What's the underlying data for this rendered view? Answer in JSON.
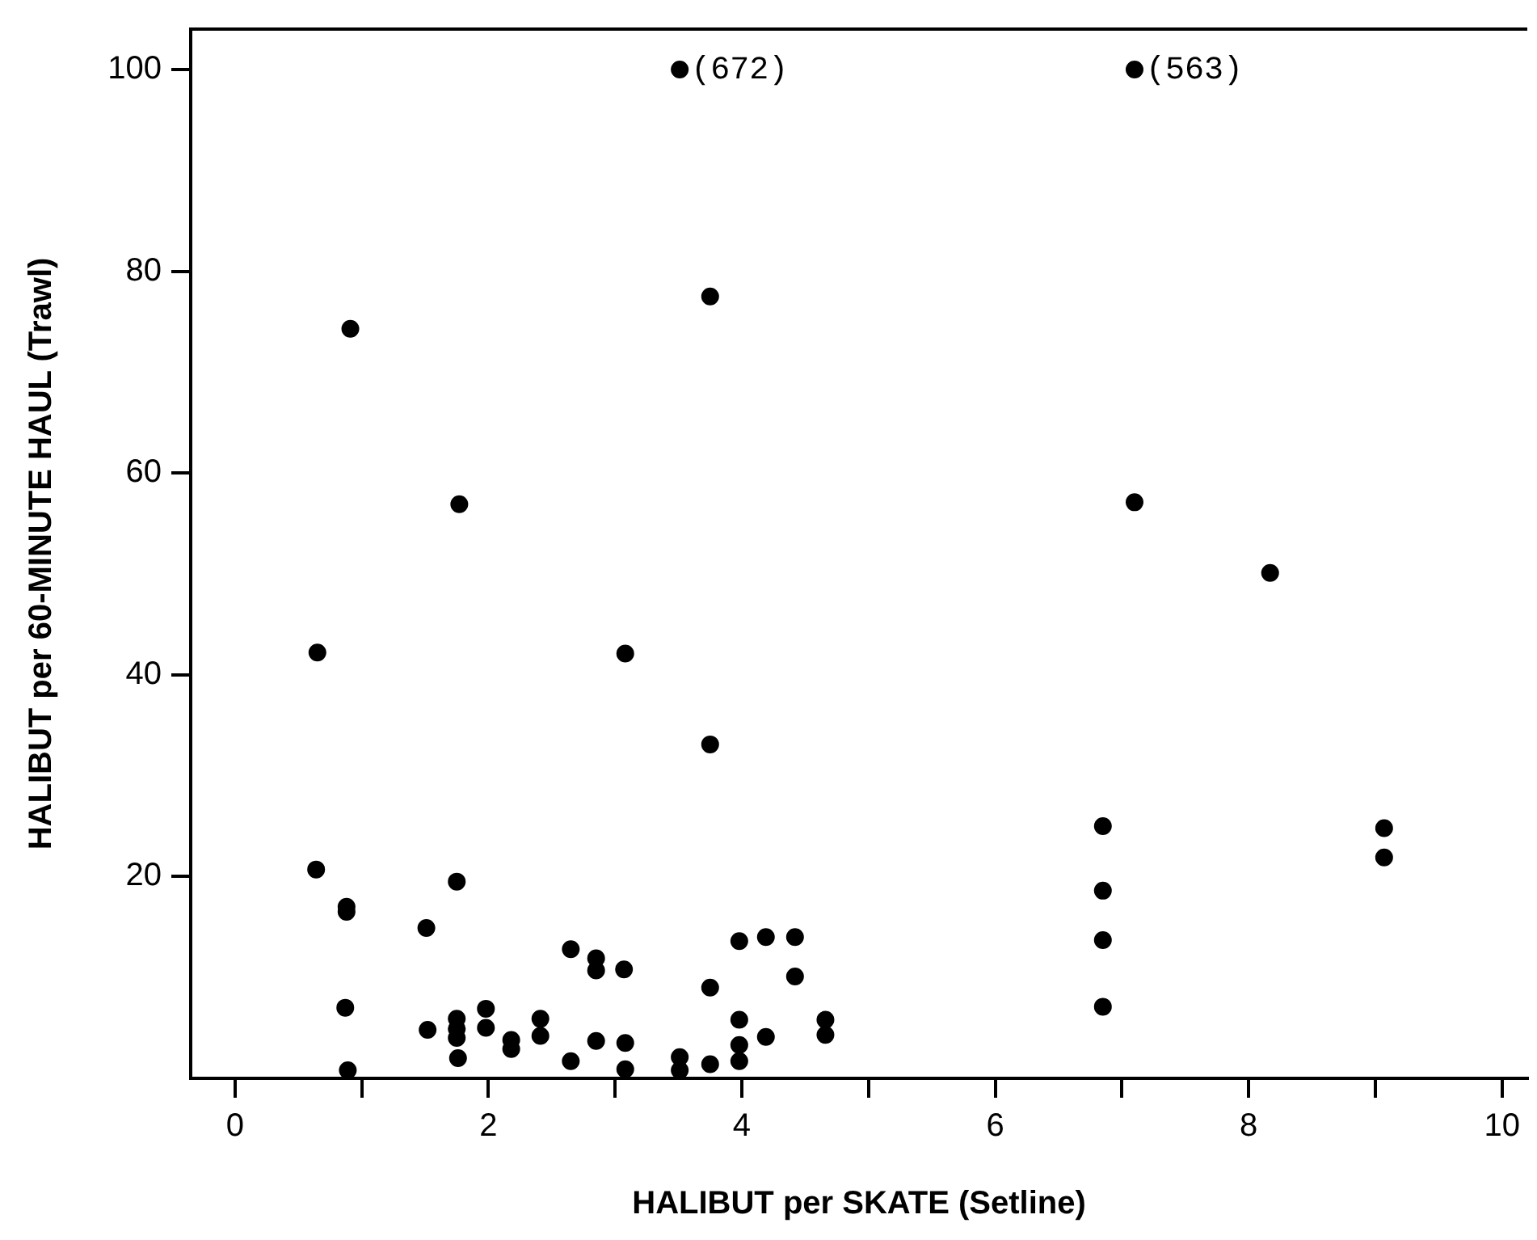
{
  "chart_data": {
    "type": "scatter",
    "xlabel": "HALIBUT per SKATE (Setline)",
    "ylabel": "HALIBUT per 60-MINUTE HAUL (Trawl)",
    "xlim": [
      -0.35,
      10.2
    ],
    "ylim": [
      0,
      104
    ],
    "xticks": [
      0,
      {
        "value": 1,
        "label": null
      },
      2,
      {
        "value": 3,
        "label": null
      },
      4,
      {
        "value": 5,
        "label": null
      },
      6,
      {
        "value": 7,
        "label": null
      },
      8,
      {
        "value": 9,
        "label": null
      },
      10
    ],
    "yticks": [
      20,
      40,
      60,
      80,
      100
    ],
    "grid": false,
    "legend": false,
    "marker": "circle",
    "series": [
      {
        "color": "#000000",
        "x": [
          0.64,
          0.88,
          0.88,
          1.75,
          1.51,
          0.87,
          0.89,
          1.52,
          1.75,
          1.75,
          1.75,
          1.76,
          1.98,
          1.98,
          2.18,
          2.18,
          2.41,
          2.41,
          2.65,
          2.65,
          2.85,
          2.85,
          2.85,
          3.07,
          3.08,
          3.08,
          3.51,
          3.51,
          3.75,
          3.75,
          3.98,
          3.98,
          3.98,
          3.98,
          4.19,
          4.19,
          4.42,
          4.42,
          4.66,
          4.66,
          0.91,
          3.75,
          3.51,
          0.65,
          1.77,
          3.08,
          3.75,
          7.1,
          7.1,
          8.17,
          6.85,
          6.85,
          6.85,
          6.85,
          9.07,
          9.07
        ],
        "values": [
          20.7,
          17.0,
          16.5,
          19.5,
          14.9,
          7.0,
          0.8,
          4.8,
          5.9,
          4.9,
          4.0,
          2.0,
          6.9,
          5.0,
          3.8,
          2.9,
          5.9,
          4.2,
          12.8,
          1.7,
          11.9,
          10.7,
          3.7,
          10.8,
          3.5,
          0.9,
          2.1,
          0.8,
          9.0,
          1.4,
          13.6,
          5.8,
          3.3,
          1.7,
          14.0,
          4.1,
          14.0,
          10.1,
          5.8,
          4.3,
          74.3,
          77.5,
          100,
          42.2,
          56.9,
          42.1,
          33.1,
          100,
          57.1,
          50.1,
          25.0,
          18.6,
          13.7,
          7.1,
          24.8,
          21.9
        ]
      }
    ],
    "annotations": [
      {
        "text": "(672)",
        "x": 3.51,
        "y": 100
      },
      {
        "text": "(563)",
        "x": 7.1,
        "y": 100
      }
    ]
  }
}
